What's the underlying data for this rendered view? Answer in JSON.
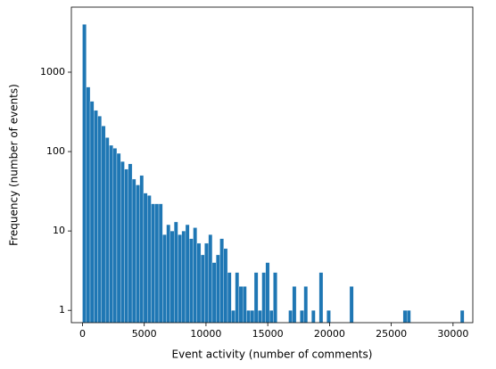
{
  "chart_data": {
    "type": "histogram",
    "x_label": "Event activity (number of comments)",
    "y_label": "Frequency (number of events)",
    "color": "#1f77b4",
    "log_y": true,
    "grid": false,
    "bins": [
      0,
      309,
      618,
      927,
      1236,
      1545,
      1854,
      2163,
      2472,
      2781,
      3090,
      3399,
      3708,
      4017,
      4326,
      4635,
      4944,
      5253,
      5562,
      5871,
      6180,
      6489,
      6798,
      7107,
      7416,
      7725,
      8034,
      8343,
      8652,
      8961,
      9270,
      9579,
      9888,
      10197,
      10506,
      10815,
      11124,
      11433,
      11742,
      12051,
      12360,
      12669,
      12978,
      13287,
      13596,
      13905,
      14214,
      14523,
      14832,
      15141,
      15450,
      15759,
      16068,
      16377,
      16686,
      16995,
      17304,
      17613,
      17922,
      18231,
      18540,
      18849,
      19158,
      19467,
      19776,
      20085,
      20394,
      20703,
      21012,
      21321,
      21630,
      21939,
      22248,
      22557,
      22866,
      23175,
      23484,
      23793,
      24102,
      24411,
      24720,
      25029,
      25338,
      25647,
      25956,
      26265,
      26574,
      26883,
      27192,
      27501,
      27810,
      28119,
      28428,
      28737,
      29046,
      29355,
      29664,
      29973,
      30282,
      30591,
      30900
    ],
    "values": [
      4000,
      650,
      430,
      330,
      280,
      210,
      150,
      120,
      110,
      95,
      75,
      60,
      70,
      45,
      38,
      50,
      30,
      28,
      22,
      22,
      22,
      9,
      12,
      10,
      13,
      9,
      10,
      12,
      8,
      11,
      7,
      5,
      7,
      9,
      4,
      5,
      8,
      6,
      3,
      1,
      3,
      2,
      2,
      1,
      1,
      3,
      1,
      3,
      4,
      1,
      3,
      0,
      0,
      0,
      1,
      2,
      0,
      1,
      2,
      0,
      1,
      0,
      3,
      0,
      1,
      0,
      0,
      0,
      0,
      0,
      2,
      0,
      0,
      0,
      0,
      0,
      0,
      0,
      0,
      0,
      0,
      0,
      0,
      0,
      1,
      1,
      0,
      0,
      0,
      0,
      0,
      0,
      0,
      0,
      0,
      0,
      0,
      0,
      0,
      1
    ],
    "xlim": [
      -900,
      31600
    ],
    "xticks": [
      0,
      5000,
      10000,
      15000,
      20000,
      25000,
      30000
    ],
    "ylim": [
      0.7,
      6600
    ],
    "yticks": [
      1,
      10,
      100,
      1000
    ]
  }
}
